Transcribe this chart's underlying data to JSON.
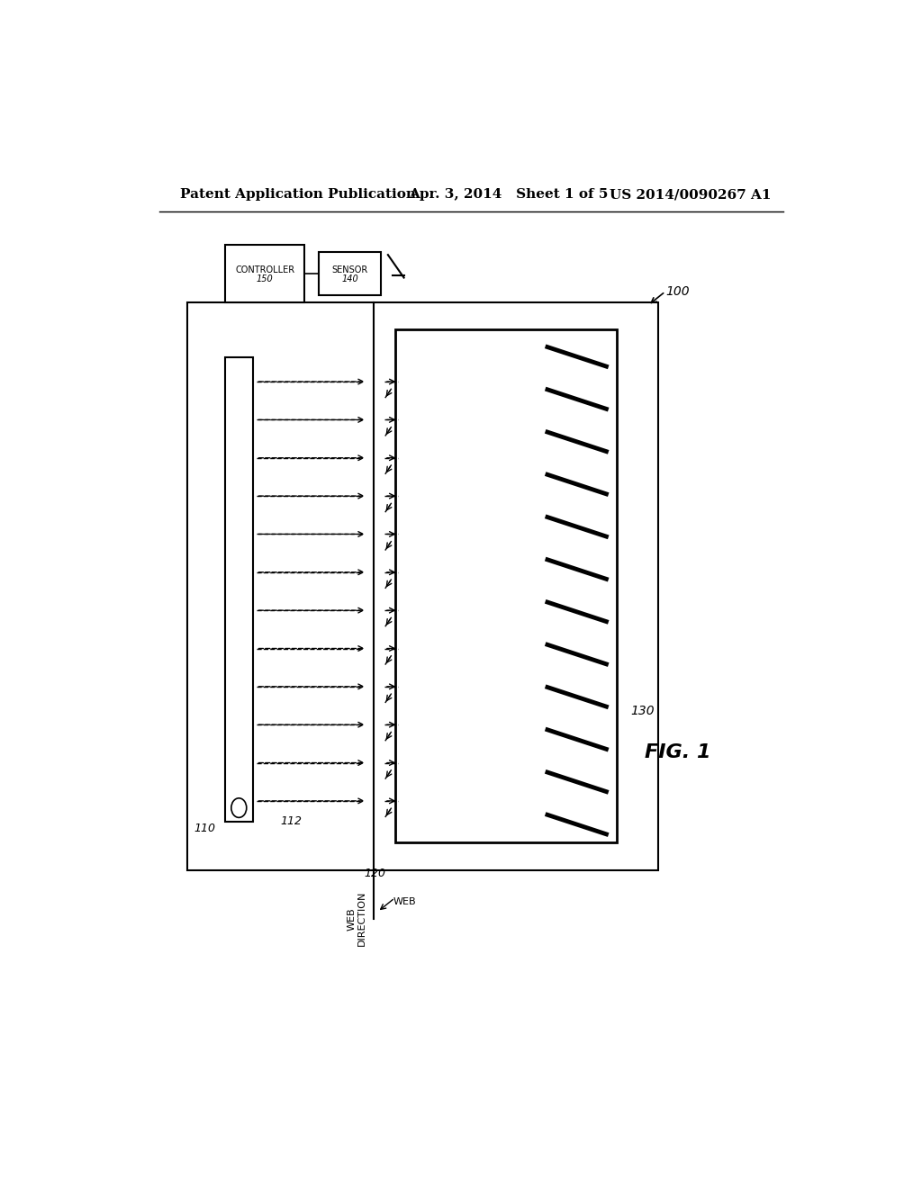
{
  "bg_color": "#ffffff",
  "header_left": "Patent Application Publication",
  "header_mid": "Apr. 3, 2014   Sheet 1 of 5",
  "header_right": "US 2014/0090267 A1",
  "fig_label": "FIG. 1",
  "ref_100": "100",
  "ref_110": "110",
  "ref_112": "112",
  "ref_120": "120",
  "ref_130": "130",
  "ref_140": "140",
  "ref_150": "150",
  "label_controller": "CONTROLLER",
  "label_sensor": "SENSOR",
  "label_web_direction": "WEB\nDIRECTION",
  "label_web": "WEB"
}
